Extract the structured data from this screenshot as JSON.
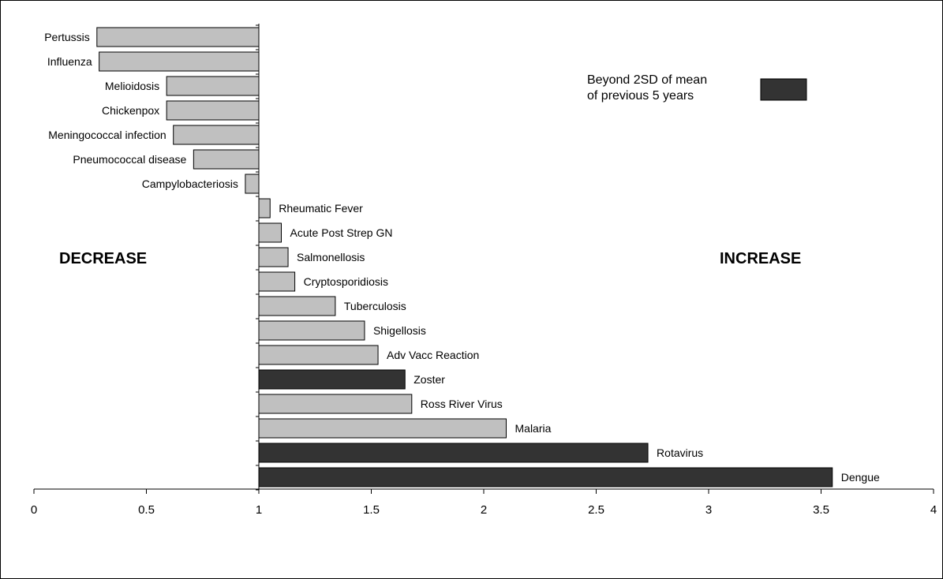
{
  "chart_data": {
    "type": "bar",
    "orientation": "horizontal",
    "baseline": 1,
    "xlim": [
      0,
      4
    ],
    "x_ticks": [
      "0",
      "0.5",
      "1",
      "1.5",
      "2",
      "2.5",
      "3",
      "3.5",
      "4"
    ],
    "categories": [
      "Pertussis",
      "Influenza",
      "Melioidosis",
      "Chickenpox",
      "Meningococcal infection",
      "Pneumococcal disease",
      "Campylobacteriosis",
      "Rheumatic Fever",
      "Acute Post Strep GN",
      "Salmonellosis",
      "Cryptosporidiosis",
      "Tuberculosis",
      "Shigellosis",
      "Adv Vacc Reaction",
      "Zoster",
      "Ross River Virus",
      "Malaria",
      "Rotavirus",
      "Dengue"
    ],
    "values": [
      0.28,
      0.29,
      0.59,
      0.59,
      0.62,
      0.71,
      0.94,
      1.05,
      1.1,
      1.13,
      1.16,
      1.34,
      1.47,
      1.53,
      1.65,
      1.68,
      2.1,
      2.73,
      3.55
    ],
    "beyond_2sd": [
      false,
      false,
      false,
      false,
      false,
      false,
      false,
      false,
      false,
      false,
      false,
      false,
      false,
      false,
      true,
      false,
      false,
      true,
      true
    ],
    "annotations": {
      "decrease": "DECREASE",
      "increase": "INCREASE"
    },
    "legend": {
      "label_line1": "Beyond 2SD of mean",
      "label_line2": "of previous 5 years",
      "placement": "top-right"
    },
    "colors": {
      "normal": "#c0c0c0",
      "beyond_2sd": "#333333",
      "outline": "#000000"
    }
  }
}
